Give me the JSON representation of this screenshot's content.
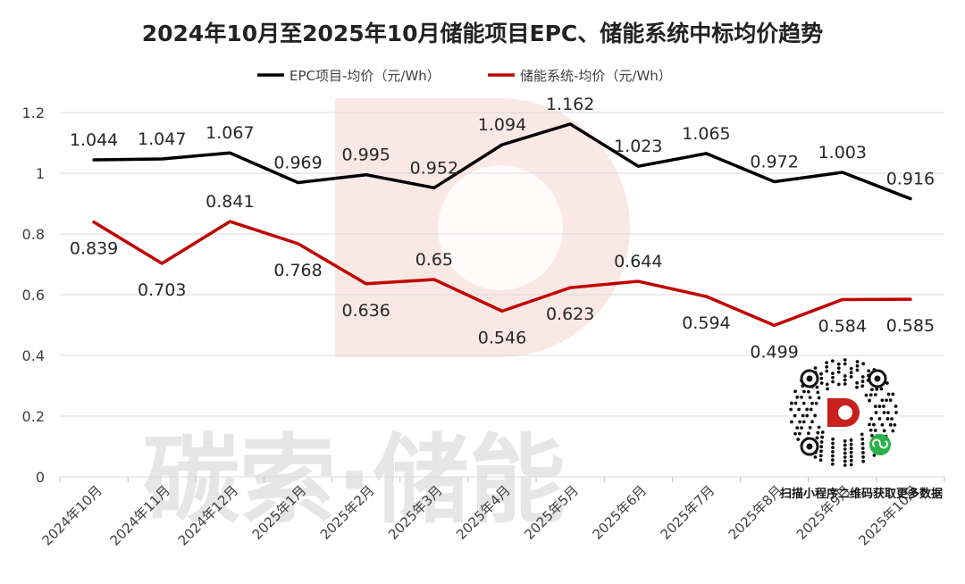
{
  "chart_data": {
    "type": "line",
    "title": "2024年10月至2025年10月储能项目EPC、储能系统中标均价趋势",
    "categories": [
      "2024年10月",
      "2024年11月",
      "2024年12月",
      "2025年1月",
      "2025年2月",
      "2025年3月",
      "2025年4月",
      "2025年5月",
      "2025年6月",
      "2025年7月",
      "2025年8月",
      "2025年9月",
      "2025年10月"
    ],
    "series": [
      {
        "name": "EPC项目-均价（元/Wh）",
        "color": "#000000",
        "values": [
          1.044,
          1.047,
          1.067,
          0.969,
          0.995,
          0.952,
          1.094,
          1.162,
          1.023,
          1.065,
          0.972,
          1.003,
          0.916
        ],
        "labels": [
          "1.044",
          "1.047",
          "1.067",
          "0.969",
          "0.995",
          "0.952",
          "1.094",
          "1.162",
          "1.023",
          "1.065",
          "0.972",
          "1.003",
          "0.916"
        ]
      },
      {
        "name": "储能系统-均价（元/Wh）",
        "color": "#c00000",
        "values": [
          0.839,
          0.703,
          0.841,
          0.768,
          0.636,
          0.65,
          0.546,
          0.623,
          0.644,
          0.594,
          0.499,
          0.584,
          0.585
        ],
        "labels": [
          "0.839",
          "0.703",
          "0.841",
          "0.768",
          "0.636",
          "0.65",
          "0.546",
          "0.623",
          "0.644",
          "0.594",
          "0.499",
          "0.584",
          "0.585"
        ]
      }
    ],
    "yticks": [
      "0",
      "0.2",
      "0.4",
      "0.6",
      "0.8",
      "1",
      "1.2"
    ],
    "ylim": [
      0,
      1.2
    ],
    "grid": true,
    "legend": "top-center"
  },
  "watermark": {
    "text": "碳索·储能",
    "qr_caption": "扫描小程序二维码获取更多数据"
  },
  "colors": {
    "watermark_logo": "#f6d5d0",
    "qr_logo": "#c8201e",
    "wechat_green": "#2bb24c"
  }
}
